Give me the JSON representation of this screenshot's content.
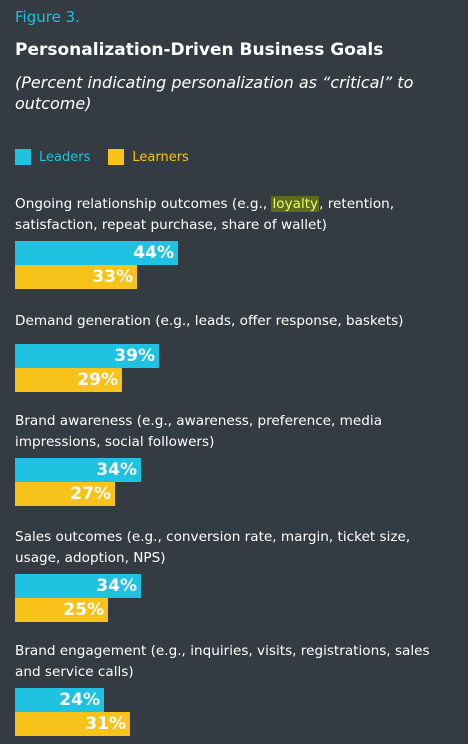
{
  "figure_label": "Figure 3.",
  "chart_data": {
    "type": "bar",
    "title": "Personalization-Driven Business Goals",
    "subtitle": "(Percent indicating personalization as “critical” to outcome)",
    "categories": [
      "Ongoing relationship outcomes (e.g., loyalty, retention, satisfaction, repeat purchase, share of wallet)",
      "Demand generation (e.g., leads, offer response, baskets)",
      "Brand awareness (e.g., awareness, preference, media impressions, social followers)",
      "Sales outcomes (e.g., conversion rate, margin, ticket size, usage, adoption, NPS)",
      "Brand engagement (e.g., inquiries, visits, registrations, sales and service calls)"
    ],
    "series": [
      {
        "name": "Leaders",
        "values": [
          44,
          39,
          34,
          34,
          24
        ],
        "labels": [
          "44%",
          "39%",
          "34%",
          "34%",
          "24%"
        ]
      },
      {
        "name": "Learners",
        "values": [
          33,
          29,
          27,
          25,
          31
        ],
        "labels": [
          "33%",
          "29%",
          "27%",
          "25%",
          "31%"
        ]
      }
    ],
    "highlighted_word": "loyalty",
    "xlim": [
      0,
      100
    ],
    "colors": {
      "leaders": "#1fc2e0",
      "learners": "#f7c21a",
      "background": "#353b42"
    },
    "legend_position": "top-left",
    "grid": false
  }
}
